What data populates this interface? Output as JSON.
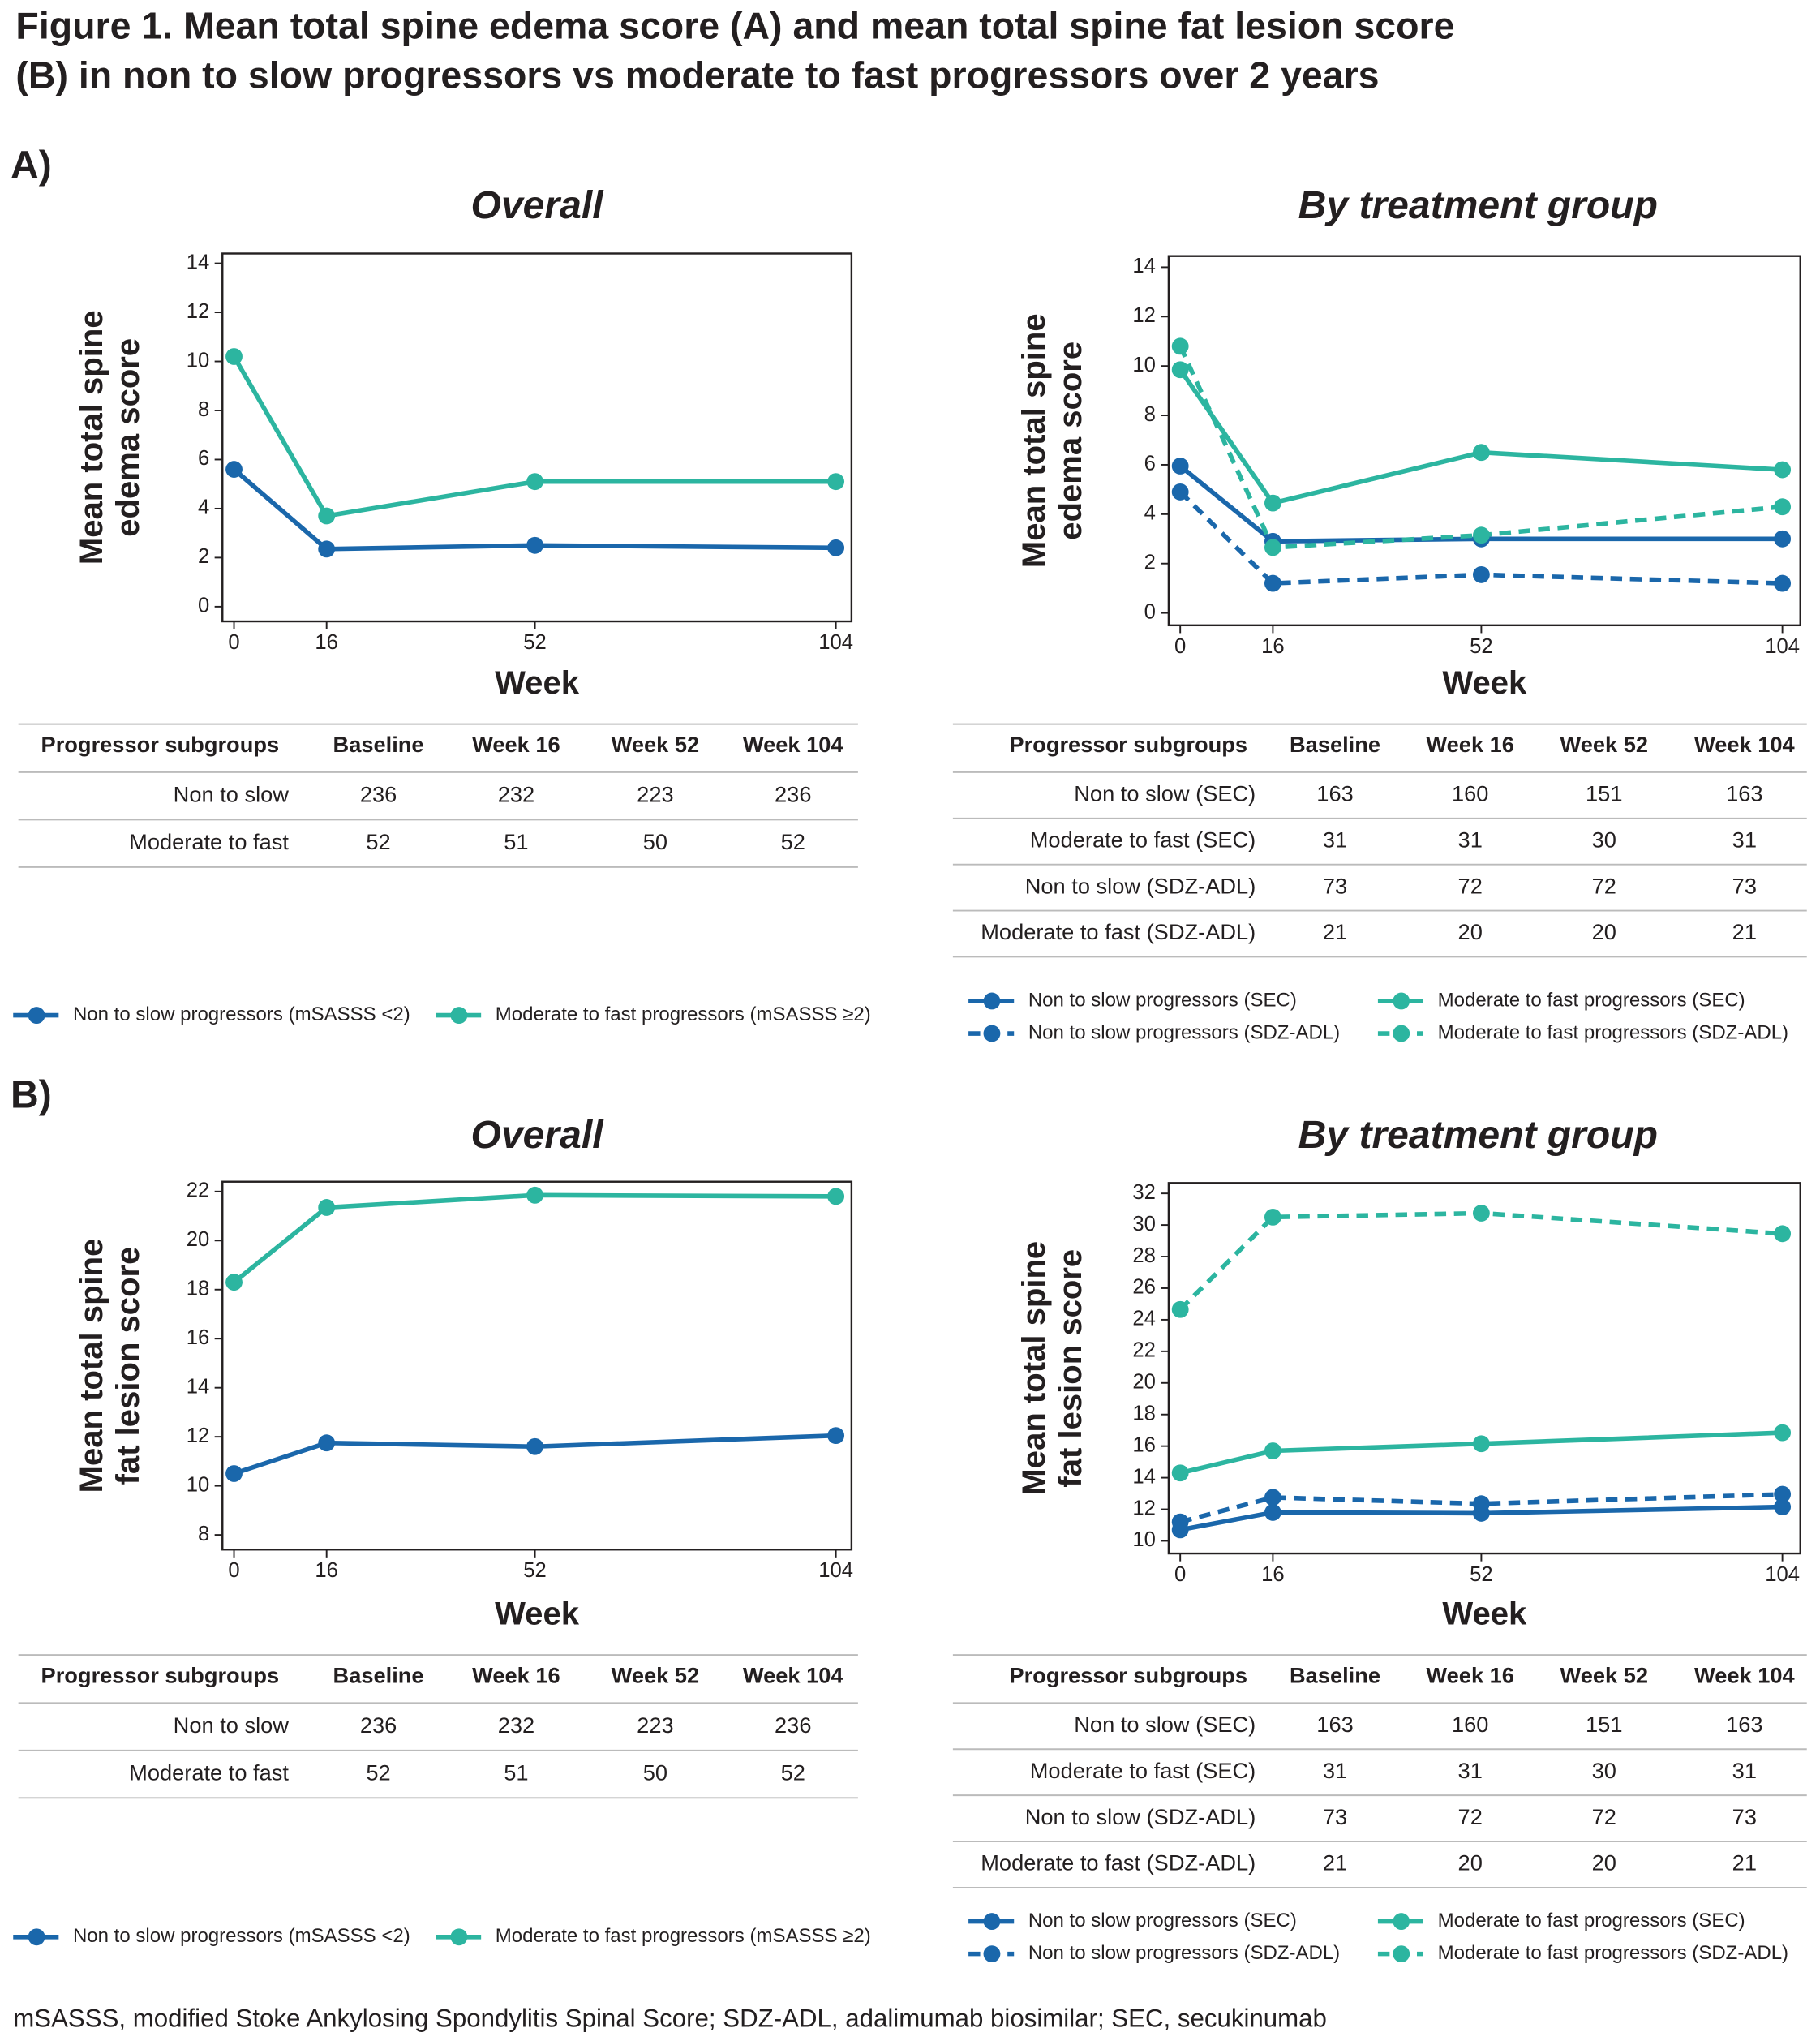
{
  "title": [
    "Figure 1. Mean total spine edema score (A) and mean total spine fat lesion score",
    "(B) in non to slow progressors vs moderate to fast progressors over 2 years"
  ],
  "panels": [
    "A)",
    "B)"
  ],
  "chart_data": [
    {
      "type": "line",
      "title": "Overall",
      "ylabel": [
        "Mean total spine",
        "edema score"
      ],
      "xlabel": "Week",
      "x": [
        0,
        16,
        52,
        104
      ],
      "xlim": [
        -2,
        106.7
      ],
      "xticks": [
        0,
        16,
        52,
        104
      ],
      "ylim": [
        -0.6,
        14.4
      ],
      "yticks": [
        0,
        2,
        4,
        6,
        8,
        10,
        12,
        14
      ],
      "series": [
        {
          "name": "Non to slow progressors (mSASSS <2)",
          "color": "#1a67ab",
          "dashed": false,
          "values": [
            5.6,
            2.35,
            2.5,
            2.4
          ]
        },
        {
          "name": "Moderate to fast progressors (mSASSS ≥2)",
          "color": "#2cb5a0",
          "dashed": false,
          "values": [
            10.2,
            3.7,
            5.1,
            5.1
          ]
        }
      ]
    },
    {
      "type": "line",
      "title": "By treatment group",
      "ylabel": [
        "Mean total spine",
        "edema score"
      ],
      "xlabel": "Week",
      "x": [
        0,
        16,
        52,
        104
      ],
      "xlim": [
        -2,
        107.1
      ],
      "xticks": [
        0,
        16,
        52,
        104
      ],
      "ylim": [
        -0.5,
        14.45
      ],
      "yticks": [
        0,
        2,
        4,
        6,
        8,
        10,
        12,
        14
      ],
      "series": [
        {
          "name": "Non to slow progressors (SEC)",
          "color": "#1a67ab",
          "dashed": false,
          "values": [
            5.95,
            2.9,
            3.0,
            3.0
          ]
        },
        {
          "name": "Non to slow progressors (SDZ-ADL)",
          "color": "#1a67ab",
          "dashed": true,
          "values": [
            4.9,
            1.2,
            1.55,
            1.2
          ]
        },
        {
          "name": "Moderate to fast progressors (SEC)",
          "color": "#2cb5a0",
          "dashed": false,
          "values": [
            9.85,
            4.45,
            6.5,
            5.8
          ]
        },
        {
          "name": "Moderate to fast progressors (SDZ-ADL)",
          "color": "#2cb5a0",
          "dashed": true,
          "values": [
            10.8,
            2.65,
            3.15,
            4.3
          ]
        }
      ]
    },
    {
      "type": "line",
      "title": "Overall",
      "ylabel": [
        "Mean total spine",
        "fat lesion score"
      ],
      "xlabel": "Week",
      "x": [
        0,
        16,
        52,
        104
      ],
      "xlim": [
        -2,
        106.7
      ],
      "xticks": [
        0,
        16,
        52,
        104
      ],
      "ylim": [
        7.4,
        22.4
      ],
      "yticks": [
        8,
        10,
        12,
        14,
        16,
        18,
        20,
        22
      ],
      "series": [
        {
          "name": "Non to slow progressors (mSASSS <2)",
          "color": "#1a67ab",
          "dashed": false,
          "values": [
            10.5,
            11.75,
            11.6,
            12.05
          ]
        },
        {
          "name": "Moderate to fast progressors (mSASSS ≥2)",
          "color": "#2cb5a0",
          "dashed": false,
          "values": [
            18.3,
            21.35,
            21.85,
            21.8
          ]
        }
      ]
    },
    {
      "type": "line",
      "title": "By treatment group",
      "ylabel": [
        "Mean total spine",
        "fat lesion score"
      ],
      "xlabel": "Week",
      "x": [
        0,
        16,
        52,
        104
      ],
      "xlim": [
        -2,
        107.1
      ],
      "xticks": [
        0,
        16,
        52,
        104
      ],
      "ylim": [
        9.2,
        32.66
      ],
      "yticks": [
        10,
        12,
        14,
        16,
        18,
        20,
        22,
        24,
        26,
        28,
        30,
        32
      ],
      "series": [
        {
          "name": "Non to slow progressors (SEC)",
          "color": "#1a67ab",
          "dashed": false,
          "values": [
            10.7,
            11.8,
            11.75,
            12.15
          ]
        },
        {
          "name": "Non to slow progressors (SDZ-ADL)",
          "color": "#1a67ab",
          "dashed": true,
          "values": [
            11.2,
            12.75,
            12.35,
            12.95
          ]
        },
        {
          "name": "Moderate to fast progressors (SEC)",
          "color": "#2cb5a0",
          "dashed": false,
          "values": [
            14.3,
            15.7,
            16.15,
            16.85
          ]
        },
        {
          "name": "Moderate to fast progressors (SDZ-ADL)",
          "color": "#2cb5a0",
          "dashed": true,
          "values": [
            24.65,
            30.5,
            30.75,
            29.45
          ]
        }
      ]
    }
  ],
  "tables": [
    {
      "header": [
        "Progressor subgroups",
        "Baseline",
        "Week 16",
        "Week 52",
        "Week 104"
      ],
      "rows": [
        [
          "Non to slow",
          236,
          232,
          223,
          236
        ],
        [
          "Moderate to fast",
          52,
          51,
          50,
          52
        ]
      ]
    },
    {
      "header": [
        "Progressor subgroups",
        "Baseline",
        "Week 16",
        "Week 52",
        "Week 104"
      ],
      "rows": [
        [
          "Non to slow (SEC)",
          163,
          160,
          151,
          163
        ],
        [
          "Moderate to fast (SEC)",
          31,
          31,
          30,
          31
        ],
        [
          "Non to slow (SDZ-ADL)",
          73,
          72,
          72,
          73
        ],
        [
          "Moderate to fast (SDZ-ADL)",
          21,
          20,
          20,
          21
        ]
      ]
    },
    {
      "header": [
        "Progressor subgroups",
        "Baseline",
        "Week 16",
        "Week 52",
        "Week 104"
      ],
      "rows": [
        [
          "Non to slow",
          236,
          232,
          223,
          236
        ],
        [
          "Moderate to fast",
          52,
          51,
          50,
          52
        ]
      ]
    },
    {
      "header": [
        "Progressor subgroups",
        "Baseline",
        "Week 16",
        "Week 52",
        "Week 104"
      ],
      "rows": [
        [
          "Non to slow (SEC)",
          163,
          160,
          151,
          163
        ],
        [
          "Moderate to fast (SEC)",
          31,
          31,
          30,
          31
        ],
        [
          "Non to slow (SDZ-ADL)",
          73,
          72,
          72,
          73
        ],
        [
          "Moderate to fast (SDZ-ADL)",
          21,
          20,
          20,
          21
        ]
      ]
    }
  ],
  "footnote": "mSASSS, modified Stoke Ankylosing Spondylitis Spinal Score; SDZ-ADL, adalimumab biosimilar; SEC, secukinumab"
}
